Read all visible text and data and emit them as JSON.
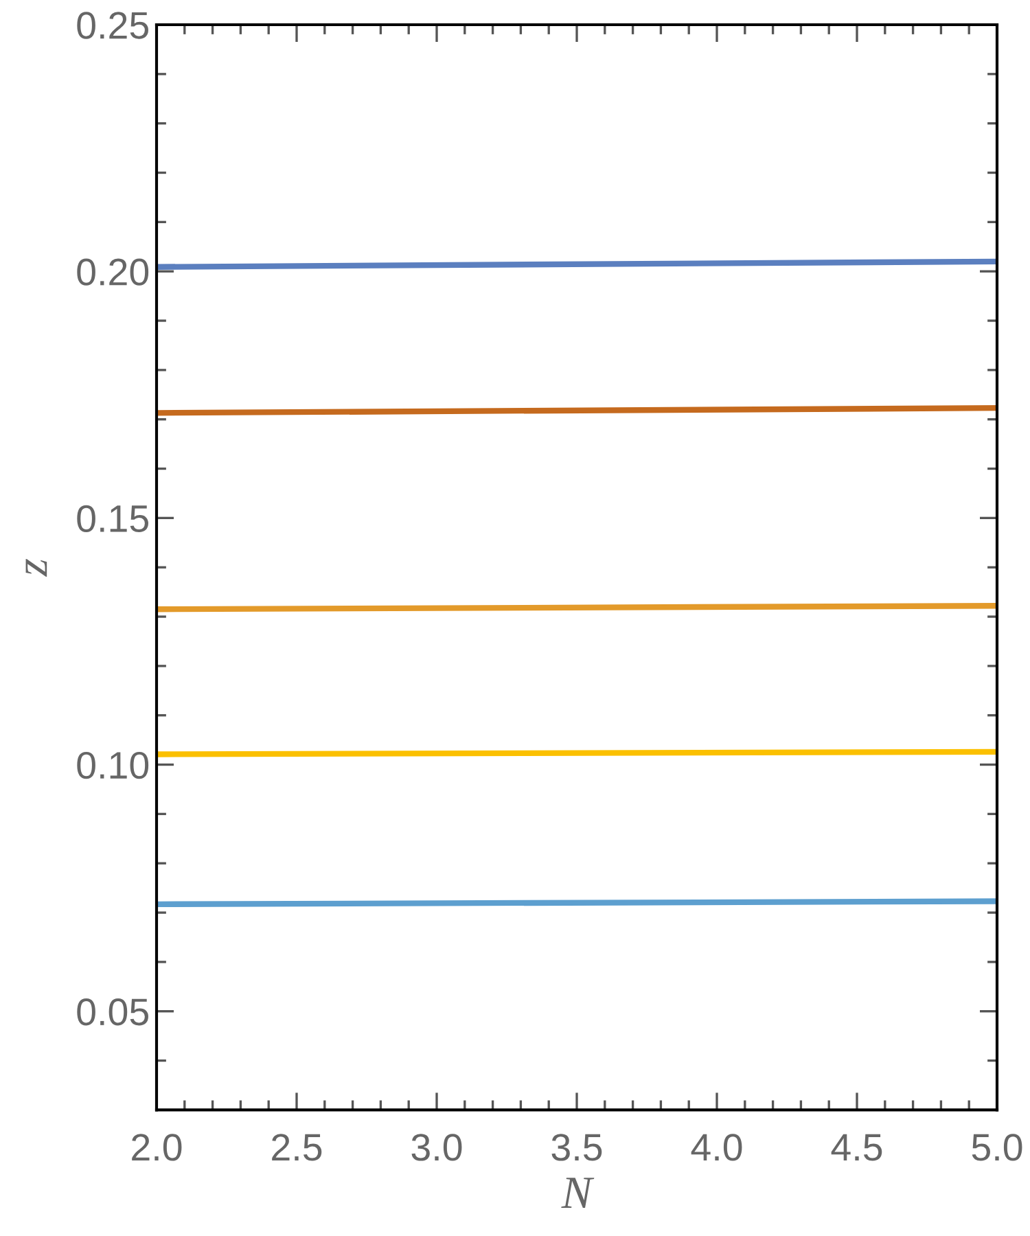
{
  "chart_data": {
    "type": "line",
    "xlabel": "N",
    "ylabel": "z",
    "x": [
      2,
      5
    ],
    "series": [
      {
        "color": "#5b7fbf",
        "values": [
          0.2009,
          0.202
        ]
      },
      {
        "color": "#c56a1e",
        "values": [
          0.1713,
          0.1723
        ]
      },
      {
        "color": "#e39a2a",
        "values": [
          0.1315,
          0.1322
        ]
      },
      {
        "color": "#fbc000",
        "values": [
          0.1021,
          0.1026
        ]
      },
      {
        "color": "#5d9fcf",
        "values": [
          0.0717,
          0.0723
        ]
      }
    ],
    "xlim": [
      2,
      5
    ],
    "ylim": [
      0.03,
      0.25
    ],
    "xticks": [
      {
        "value": 2.0,
        "label": "2.0"
      },
      {
        "value": 2.1,
        "label": null
      },
      {
        "value": 2.2,
        "label": null
      },
      {
        "value": 2.3,
        "label": null
      },
      {
        "value": 2.4,
        "label": null
      },
      {
        "value": 2.5,
        "label": "2.5"
      },
      {
        "value": 2.6,
        "label": null
      },
      {
        "value": 2.7,
        "label": null
      },
      {
        "value": 2.8,
        "label": null
      },
      {
        "value": 2.9,
        "label": null
      },
      {
        "value": 3.0,
        "label": "3.0"
      },
      {
        "value": 3.1,
        "label": null
      },
      {
        "value": 3.2,
        "label": null
      },
      {
        "value": 3.3,
        "label": null
      },
      {
        "value": 3.4,
        "label": null
      },
      {
        "value": 3.5,
        "label": "3.5"
      },
      {
        "value": 3.6,
        "label": null
      },
      {
        "value": 3.7,
        "label": null
      },
      {
        "value": 3.8,
        "label": null
      },
      {
        "value": 3.9,
        "label": null
      },
      {
        "value": 4.0,
        "label": "4.0"
      },
      {
        "value": 4.1,
        "label": null
      },
      {
        "value": 4.2,
        "label": null
      },
      {
        "value": 4.3,
        "label": null
      },
      {
        "value": 4.4,
        "label": null
      },
      {
        "value": 4.5,
        "label": "4.5"
      },
      {
        "value": 4.6,
        "label": null
      },
      {
        "value": 4.7,
        "label": null
      },
      {
        "value": 4.8,
        "label": null
      },
      {
        "value": 4.9,
        "label": null
      },
      {
        "value": 5.0,
        "label": "5.0"
      }
    ],
    "yticks": [
      {
        "value": 0.04,
        "label": null
      },
      {
        "value": 0.05,
        "label": "0.05"
      },
      {
        "value": 0.06,
        "label": null
      },
      {
        "value": 0.07,
        "label": null
      },
      {
        "value": 0.08,
        "label": null
      },
      {
        "value": 0.09,
        "label": null
      },
      {
        "value": 0.1,
        "label": "0.10"
      },
      {
        "value": 0.11,
        "label": null
      },
      {
        "value": 0.12,
        "label": null
      },
      {
        "value": 0.13,
        "label": null
      },
      {
        "value": 0.14,
        "label": null
      },
      {
        "value": 0.15,
        "label": "0.15"
      },
      {
        "value": 0.16,
        "label": null
      },
      {
        "value": 0.17,
        "label": null
      },
      {
        "value": 0.18,
        "label": null
      },
      {
        "value": 0.19,
        "label": null
      },
      {
        "value": 0.2,
        "label": "0.20"
      },
      {
        "value": 0.21,
        "label": null
      },
      {
        "value": 0.22,
        "label": null
      },
      {
        "value": 0.23,
        "label": null
      },
      {
        "value": 0.24,
        "label": null
      },
      {
        "value": 0.25,
        "label": "0.25"
      }
    ],
    "marker": "none",
    "line_style": "solid"
  }
}
